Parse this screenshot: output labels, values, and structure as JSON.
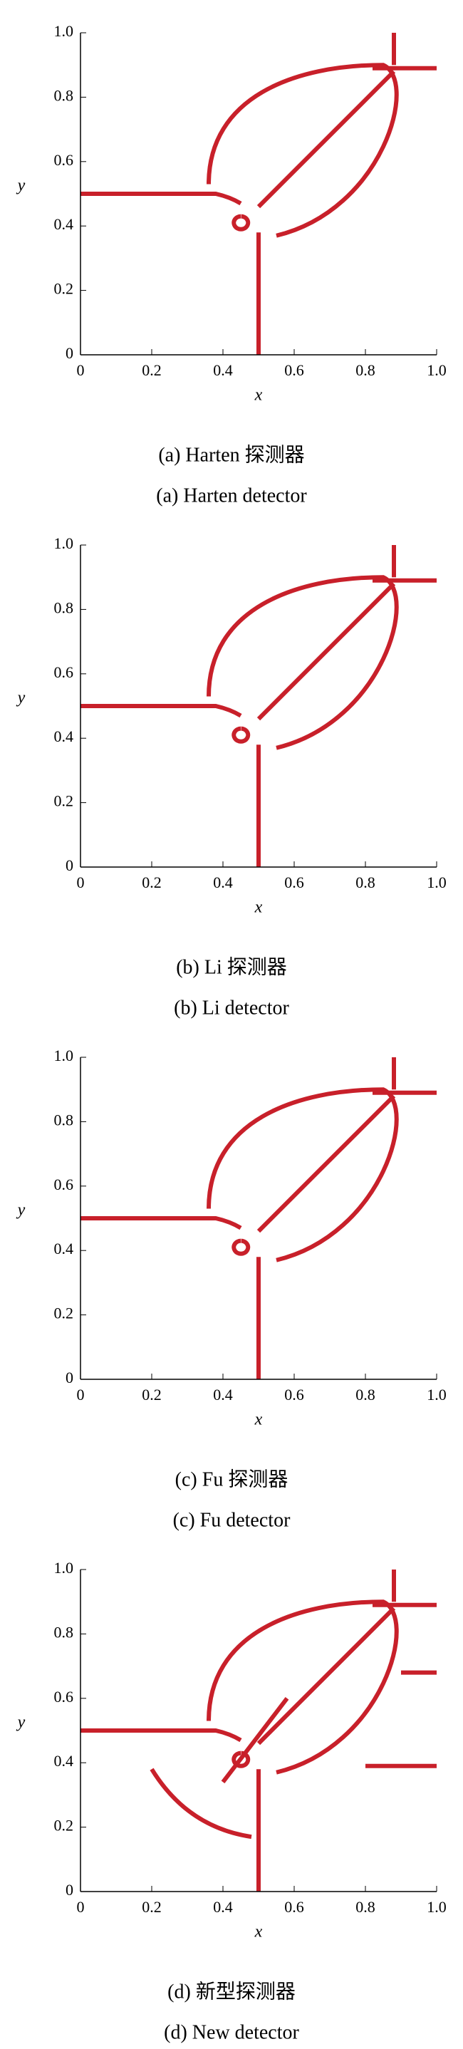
{
  "chart_data": [
    {
      "type": "scatter",
      "xlabel": "x",
      "ylabel": "y",
      "xlim": [
        0,
        1
      ],
      "ylim": [
        0,
        1
      ],
      "xticks": [
        0,
        0.2,
        0.4,
        0.6,
        0.8,
        {
          "value": 1,
          "label": "1.0"
        }
      ],
      "yticks": [
        0,
        0.2,
        0.4,
        0.6,
        0.8,
        {
          "value": 1,
          "label": "1.0"
        }
      ],
      "color": "#c8202a",
      "caption": "(a) Harten 探测器",
      "subcaption": "(a) Harten detector"
    },
    {
      "type": "scatter",
      "xlabel": "x",
      "ylabel": "y",
      "xlim": [
        0,
        1
      ],
      "ylim": [
        0,
        1
      ],
      "xticks": [
        0,
        0.2,
        0.4,
        0.6,
        0.8,
        {
          "value": 1,
          "label": "1.0"
        }
      ],
      "yticks": [
        0,
        0.2,
        0.4,
        0.6,
        0.8,
        {
          "value": 1,
          "label": "1.0"
        }
      ],
      "color": "#c8202a",
      "caption": "(b) Li 探测器",
      "subcaption": "(b) Li detector"
    },
    {
      "type": "scatter",
      "xlabel": "x",
      "ylabel": "y",
      "xlim": [
        0,
        1
      ],
      "ylim": [
        0,
        1
      ],
      "xticks": [
        0,
        0.2,
        0.4,
        0.6,
        0.8,
        {
          "value": 1,
          "label": "1.0"
        }
      ],
      "yticks": [
        0,
        0.2,
        0.4,
        0.6,
        0.8,
        {
          "value": 1,
          "label": "1.0"
        }
      ],
      "color": "#c8202a",
      "caption": "(c) Fu 探测器",
      "subcaption": "(c) Fu detector"
    },
    {
      "type": "scatter",
      "xlabel": "x",
      "ylabel": "y",
      "xlim": [
        0,
        1
      ],
      "ylim": [
        0,
        1
      ],
      "xticks": [
        0,
        0.2,
        0.4,
        0.6,
        0.8,
        {
          "value": 1,
          "label": "1.0"
        }
      ],
      "yticks": [
        0,
        0.2,
        0.4,
        0.6,
        0.8,
        {
          "value": 1,
          "label": "1.0"
        }
      ],
      "color": "#c8202a",
      "caption": "(d) 新型探测器",
      "subcaption": "(d) New detector"
    }
  ]
}
